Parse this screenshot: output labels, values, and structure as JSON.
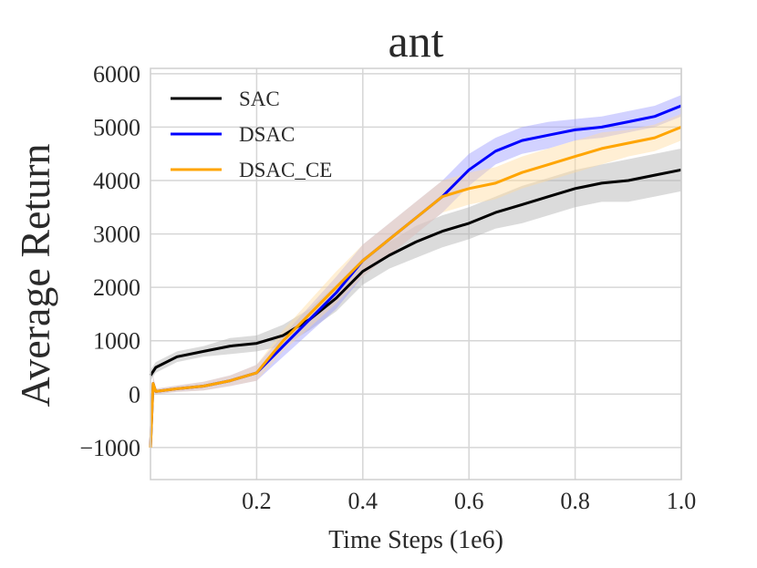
{
  "chart_data": {
    "type": "line",
    "title": "ant",
    "xlabel": "Time Steps (1e6)",
    "ylabel": "Average Return",
    "xlim": [
      0.0,
      1.0
    ],
    "ylim": [
      -1600,
      6100
    ],
    "x_ticks": [
      0.2,
      0.4,
      0.6,
      0.8,
      1.0
    ],
    "x_tick_labels": [
      "0.2",
      "0.4",
      "0.6",
      "0.8",
      "1.0"
    ],
    "y_ticks": [
      -1000,
      0,
      1000,
      2000,
      3000,
      4000,
      5000,
      6000
    ],
    "y_tick_labels": [
      "−1000",
      "0",
      "1000",
      "2000",
      "3000",
      "4000",
      "5000",
      "6000"
    ],
    "grid": true,
    "legend_position": "top-left",
    "series": [
      {
        "name": "SAC",
        "color": "#000000",
        "band_color": "#b0b0b0",
        "x": [
          0.0,
          0.01,
          0.05,
          0.1,
          0.15,
          0.2,
          0.25,
          0.3,
          0.35,
          0.4,
          0.45,
          0.5,
          0.55,
          0.6,
          0.65,
          0.7,
          0.75,
          0.8,
          0.85,
          0.9,
          0.95,
          1.0
        ],
        "y": [
          350,
          500,
          700,
          800,
          900,
          950,
          1100,
          1400,
          1800,
          2300,
          2600,
          2850,
          3050,
          3200,
          3400,
          3550,
          3700,
          3850,
          3950,
          4000,
          4100,
          4200
        ],
        "band": [
          100,
          100,
          100,
          100,
          150,
          150,
          200,
          200,
          250,
          250,
          250,
          300,
          300,
          300,
          300,
          350,
          350,
          350,
          350,
          400,
          400,
          400
        ]
      },
      {
        "name": "DSAC",
        "color": "#0000ff",
        "band_color": "#9c9cff",
        "x": [
          0.0,
          0.005,
          0.01,
          0.05,
          0.1,
          0.15,
          0.2,
          0.25,
          0.3,
          0.35,
          0.4,
          0.45,
          0.5,
          0.55,
          0.6,
          0.65,
          0.7,
          0.75,
          0.8,
          0.85,
          0.9,
          0.95,
          1.0
        ],
        "y": [
          -1000,
          200,
          50,
          100,
          150,
          250,
          400,
          900,
          1400,
          1900,
          2500,
          2900,
          3300,
          3700,
          4200,
          4550,
          4750,
          4850,
          4950,
          5000,
          5100,
          5200,
          5400
        ],
        "band": [
          0,
          150,
          50,
          60,
          80,
          100,
          150,
          200,
          250,
          300,
          300,
          300,
          300,
          300,
          300,
          250,
          250,
          250,
          200,
          200,
          200,
          200,
          200
        ]
      },
      {
        "name": "DSAC_CE",
        "color": "#ffa500",
        "band_color": "#ffdba0",
        "x": [
          0.0,
          0.005,
          0.01,
          0.05,
          0.1,
          0.15,
          0.2,
          0.25,
          0.3,
          0.35,
          0.4,
          0.45,
          0.5,
          0.55,
          0.6,
          0.65,
          0.7,
          0.75,
          0.8,
          0.85,
          0.9,
          0.95,
          1.0
        ],
        "y": [
          -1000,
          200,
          50,
          100,
          150,
          250,
          400,
          1000,
          1500,
          2000,
          2500,
          2900,
          3300,
          3700,
          3850,
          3950,
          4150,
          4300,
          4450,
          4600,
          4700,
          4800,
          5000
        ],
        "band": [
          0,
          150,
          50,
          60,
          80,
          100,
          150,
          200,
          250,
          300,
          300,
          300,
          300,
          300,
          300,
          300,
          300,
          300,
          300,
          300,
          250,
          250,
          250
        ]
      }
    ]
  }
}
